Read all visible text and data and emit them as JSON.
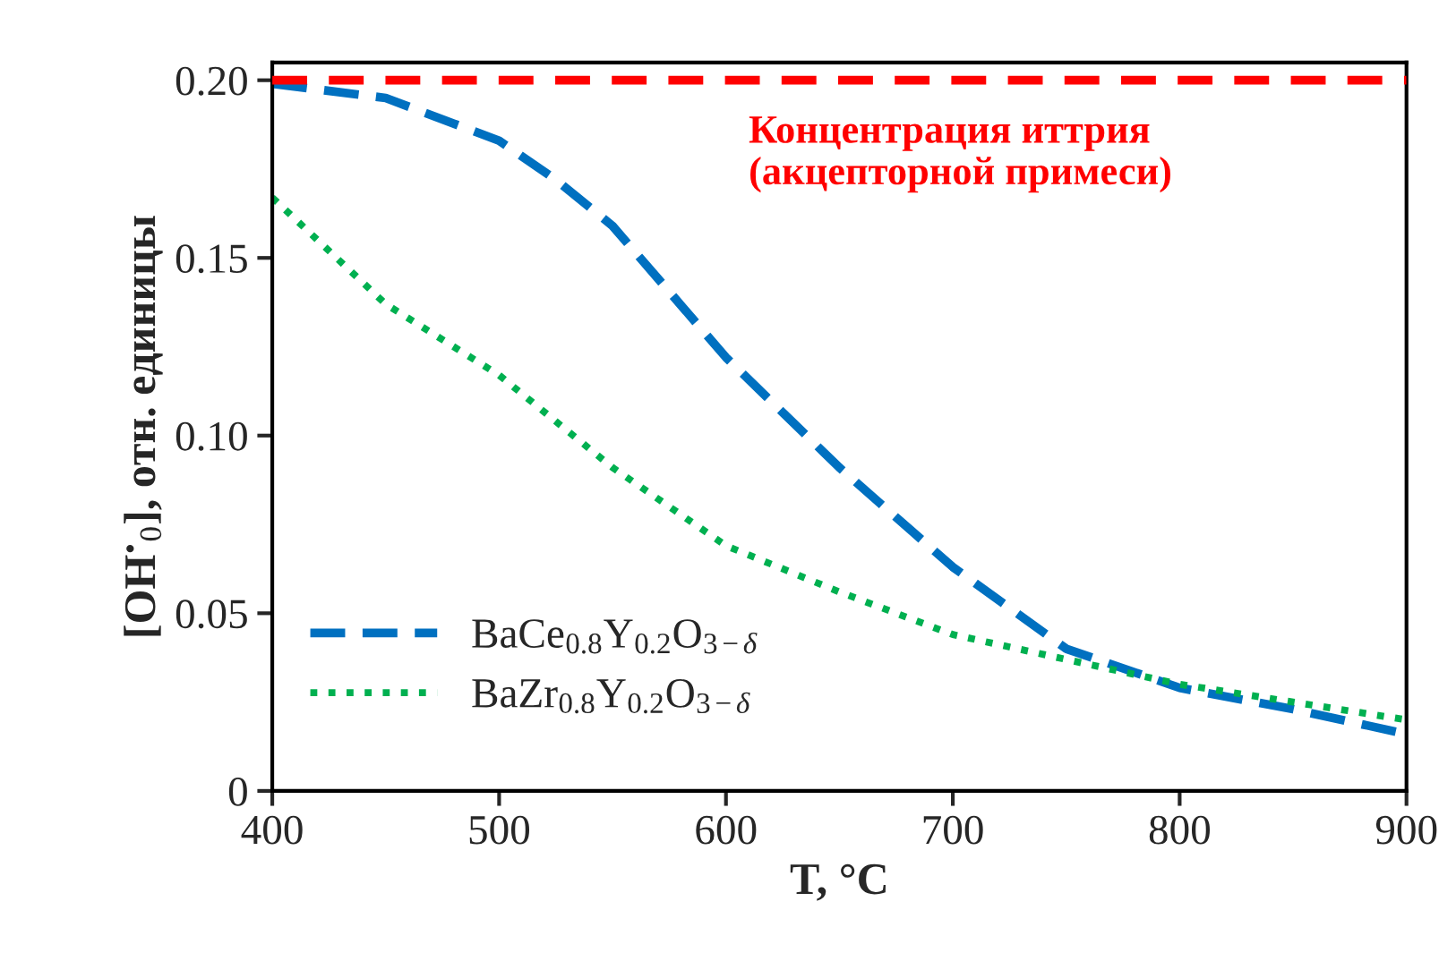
{
  "chart_data": {
    "type": "line",
    "xlabel": "T, °C",
    "ylabel": "[OH$^{•}$$_{0}$], отн. единицы",
    "xlim": [
      400,
      900
    ],
    "xticks": [
      400,
      500,
      600,
      700,
      800,
      900
    ],
    "ylim": [
      0,
      0.205
    ],
    "yticks": [
      {
        "value": 0,
        "label": "0"
      },
      {
        "value": 0.05,
        "label": "0.05"
      },
      {
        "value": 0.1,
        "label": "0.10"
      },
      {
        "value": 0.15,
        "label": "0.15"
      },
      {
        "value": 0.2,
        "label": "0.20"
      }
    ],
    "grid": false,
    "legend": "bottom left",
    "series": [
      {
        "name": "BaCe$_{0.8}$Y$_{0.2}$O$_{3−δ}$",
        "color": "#0070c0",
        "line_style": "dashed",
        "x": [
          400,
          450,
          500,
          525,
          550,
          600,
          650,
          700,
          750,
          800,
          850,
          900
        ],
        "values": [
          0.199,
          0.195,
          0.183,
          0.172,
          0.159,
          0.122,
          0.091,
          0.063,
          0.04,
          0.029,
          0.023,
          0.016
        ]
      },
      {
        "name": "BaZr$_{0.8}$Y$_{0.2}$O$_{3−δ}$",
        "color": "#00b050",
        "line_style": "dotted",
        "x": [
          400,
          425,
          450,
          500,
          550,
          600,
          650,
          700,
          750,
          800,
          850,
          900
        ],
        "values": [
          0.167,
          0.152,
          0.137,
          0.117,
          0.091,
          0.069,
          0.056,
          0.044,
          0.037,
          0.03,
          0.025,
          0.02
        ]
      }
    ],
    "ref_lines": [
      {
        "axis": "y",
        "value": 0.2,
        "label": "Концентрация иттрия\n(акцепторной примеси)",
        "color": "#ff0000",
        "line_style": "dashed"
      }
    ]
  }
}
